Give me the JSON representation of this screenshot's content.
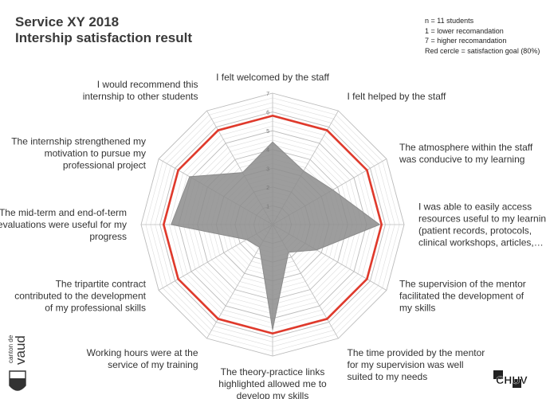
{
  "title": "Service XY 2018",
  "subtitle": "Intership satisfaction result",
  "notes": [
    "n = 11 students",
    "1 = lower recomandation",
    "7 = higher recomandation",
    "Red cercle = satisfaction goal (80%)"
  ],
  "logos": {
    "left": {
      "text_main": "vaud",
      "text_small": "canton de"
    },
    "right": {
      "text": "CHUV"
    }
  },
  "colors": {
    "goal": "#e0392b",
    "area": "#8c8c8c",
    "grid": "#bbbbbb",
    "grid_minor": "#dddddd"
  },
  "chart_data": {
    "type": "radar",
    "scale": {
      "min": 1,
      "max": 7,
      "ticks": [
        1,
        2,
        3,
        4,
        5,
        6,
        7
      ]
    },
    "categories": [
      [
        "I felt welcomed by the staff"
      ],
      [
        "I felt helped by the staff"
      ],
      [
        "The atmosphere within the staff",
        "was conducive to my learning"
      ],
      [
        "I was able to easily access",
        "resources useful to my learning",
        "(patient records, protocols,",
        "clinical workshops, articles,…"
      ],
      [
        "The supervision of the mentor",
        "facilitated the development of",
        "my skills"
      ],
      [
        "The time provided by the mentor",
        "for my supervision was well",
        "suited to my needs"
      ],
      [
        "The theory-practice links",
        "highlighted allowed me to",
        "develop my skills"
      ],
      [
        "Working hours were at the",
        "service of my training"
      ],
      [
        "The tripartite contract",
        "contributed to the development",
        "of my professional skills"
      ],
      [
        "The mid-term and end-of-term",
        "evaluations were useful for my",
        "progress"
      ],
      [
        "The internship strengthened my",
        "motivation to pursue my",
        "professional project"
      ],
      [
        "I would recommend this",
        "internship to other students"
      ]
    ],
    "series": [
      {
        "values": [
          4.4,
          3.3,
          3.7,
          5.7,
          2.7,
          1.7,
          5.6,
          1.4,
          1.6,
          5.4,
          5.1,
          3.2
        ]
      },
      {
        "values": [
          5.8,
          5.8,
          5.8,
          5.8,
          5.8,
          5.8,
          5.8,
          5.8,
          5.8,
          5.8,
          5.8,
          5.8
        ]
      }
    ]
  }
}
